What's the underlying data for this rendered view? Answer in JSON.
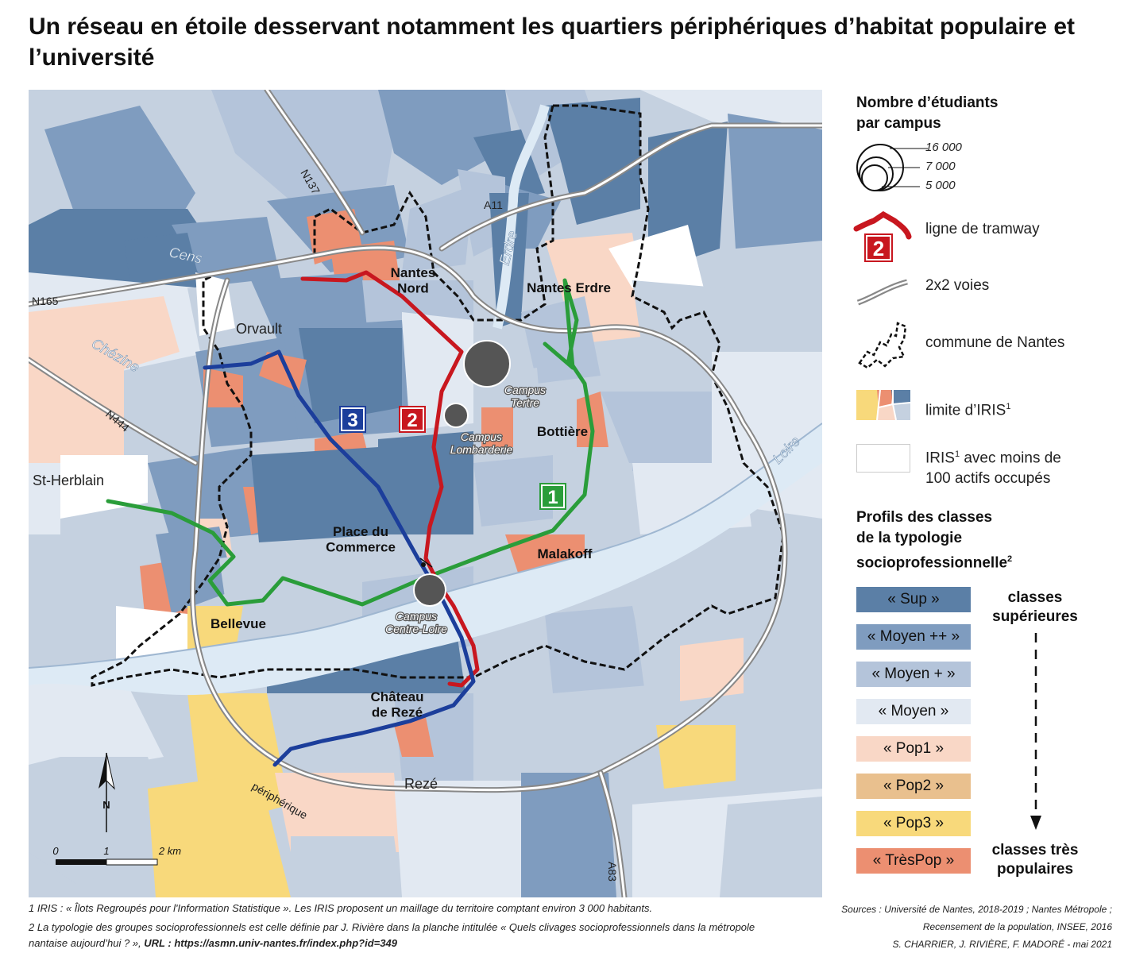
{
  "title": "Un réseau en étoile desservant notamment les quartiers périphériques d’habitat populaire et l’université",
  "colors": {
    "sup": "#5b7fa6",
    "moyen_pp": "#7f9cbf",
    "moyen_p": "#b4c4da",
    "moyen": "#e2e9f2",
    "pop1": "#f9d7c6",
    "pop2": "#e9c08e",
    "pop3": "#f8d97b",
    "trespop": "#ec8f71",
    "no_data": "#ffffff",
    "water": "#ddeaf5",
    "line1": "#2a9d3a",
    "line2": "#c8171f",
    "line3": "#1c3e9b",
    "road": "#888888"
  },
  "map": {
    "places": {
      "nantes_nord": "Nantes\nNord",
      "nantes_erdre": "Nantes Erdre",
      "orvault": "Orvault",
      "bottiere": "Bottière",
      "malakoff": "Malakoff",
      "place_commerce": "Place du\nCommerce",
      "bellevue": "Bellevue",
      "chateau_reze": "Château\nde Rezé",
      "reze": "Rezé",
      "st_herblain": "St-Herblain"
    },
    "campus": {
      "tertre": "Campus\nTertre",
      "lombarderie": "Campus\nLombarderie",
      "centre_loire": "Campus\nCentre-Loire"
    },
    "roads": {
      "n137": "N137",
      "a11": "A11",
      "n165": "N165",
      "n444": "N444",
      "a83": "A83",
      "peripherique": "périphérique"
    },
    "rivers": {
      "cens": "Cens",
      "erdre": "Erdre",
      "chezine": "Chézine",
      "loire": "Loire"
    },
    "tram_numbers": {
      "l1": "1",
      "l2": "2",
      "l3": "3"
    },
    "scale": {
      "t0": "0",
      "t1": "1",
      "t2": "2 km"
    },
    "north": "N"
  },
  "legend": {
    "students_title": "Nombre d’étudiants\npar campus",
    "circle_values": [
      "16 000",
      "7 000",
      "5 000"
    ],
    "tram_label": "ligne de tramway",
    "tram_example": "2",
    "roads_label": "2x2 voies",
    "commune_label": "commune de Nantes",
    "iris_label": "limite d’IRIS",
    "iris_sup": "1",
    "iris_empty_label": "IRIS",
    "iris_empty_sup": "1",
    "iris_empty_rest": " avec moins de\n100 actifs occupés",
    "profiles_title": "Profils des classes\nde la typologie\nsocioprofessionnelle",
    "profiles_sup": "2",
    "classes": [
      "« Sup »",
      "« Moyen ++ »",
      "« Moyen + »",
      "« Moyen »",
      "« Pop1 »",
      "« Pop2 »",
      "« Pop3 »",
      "« TrèsPop »"
    ],
    "top_label": "classes\nsupérieures",
    "bottom_label": "classes très\npopulaires"
  },
  "footnotes": {
    "n1": "1   IRIS : « Îlots Regroupés pour l'Information Statistique ». Les IRIS proposent un maillage du territoire comptant environ 3 000 habitants.",
    "n2a": "2   La typologie des groupes socioprofessionnels est celle définie par J. Rivière dans la planche intitulée « Quels clivages socioprofessionnels dans la métropole",
    "n2b": "nantaise aujourd’hui ? », ",
    "n2_url": "URL : https://asmn.univ-nantes.fr/index.php?id=349"
  },
  "sources": {
    "line1": "Sources : Université de Nantes, 2018-2019 ; Nantes Métropole ;",
    "line2": "Recensement de la population, INSEE, 2016",
    "line3": "S. CHARRIER, J. RIVIÈRE, F. MADORÉ - mai 2021"
  }
}
